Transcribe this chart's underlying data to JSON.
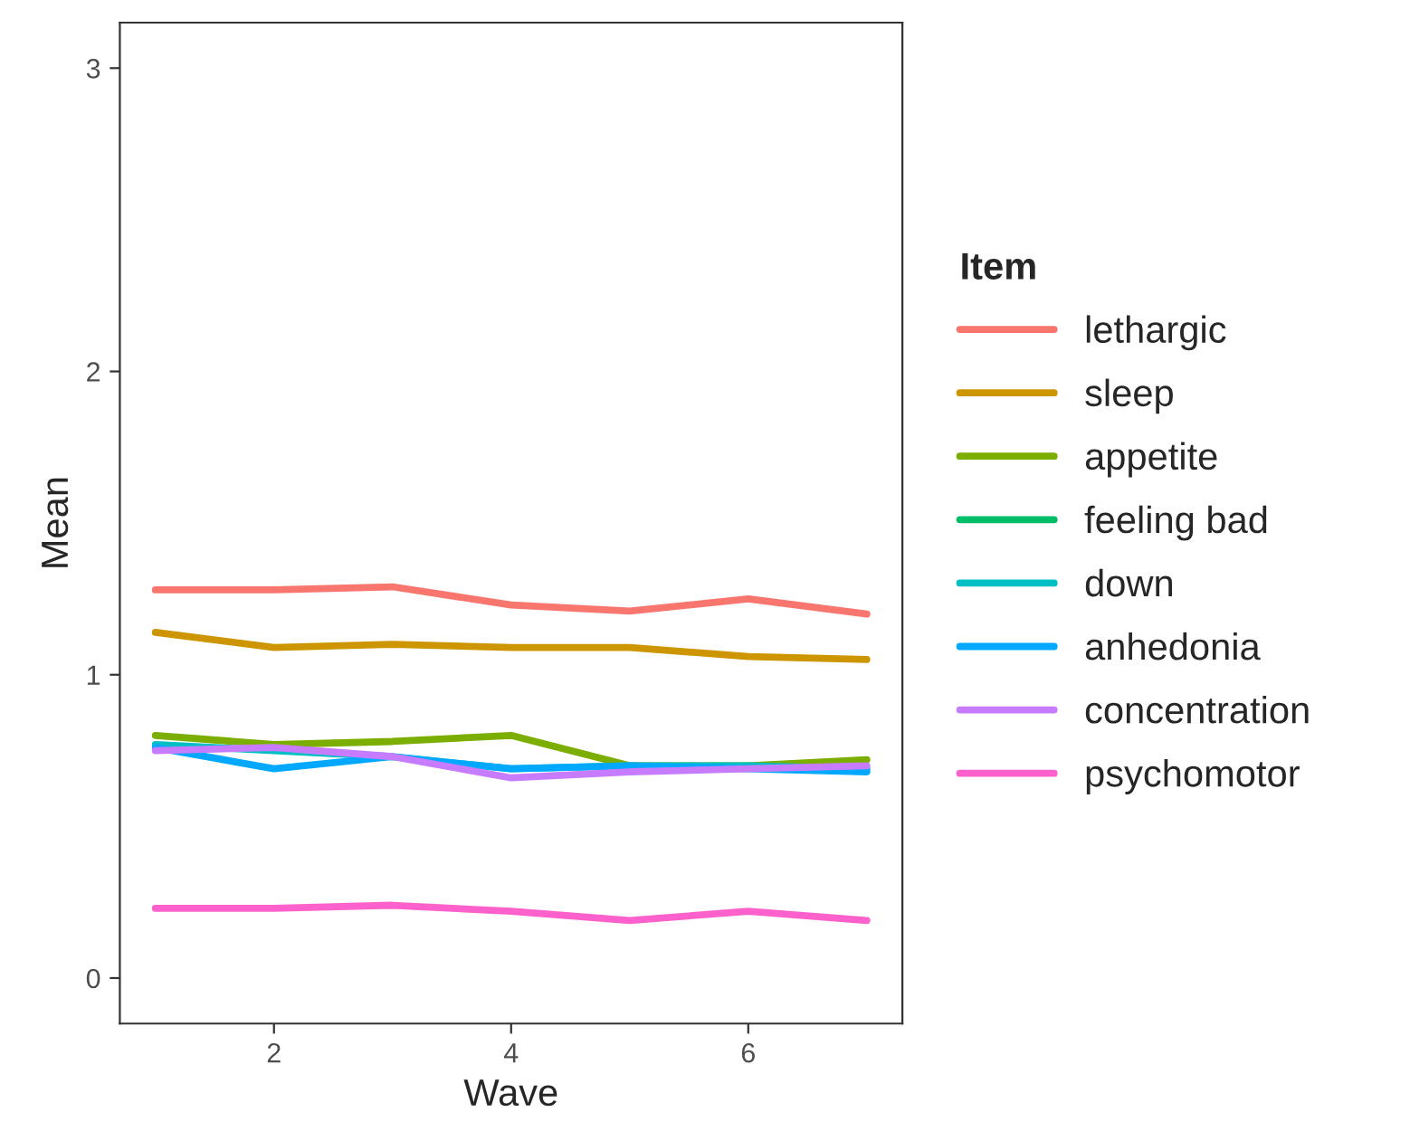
{
  "chart_data": {
    "type": "line",
    "xlabel": "Wave",
    "ylabel": "Mean",
    "legend_title": "Item",
    "x": [
      1,
      2,
      3,
      4,
      5,
      6,
      7
    ],
    "series": [
      {
        "name": "lethargic",
        "color": "#F8766D",
        "values": [
          1.28,
          1.28,
          1.29,
          1.23,
          1.21,
          1.25,
          1.2
        ]
      },
      {
        "name": "sleep",
        "color": "#CD9600",
        "values": [
          1.14,
          1.09,
          1.1,
          1.09,
          1.09,
          1.06,
          1.05
        ]
      },
      {
        "name": "appetite",
        "color": "#7CAE00",
        "values": [
          0.8,
          0.77,
          0.78,
          0.8,
          0.7,
          0.7,
          0.72
        ]
      },
      {
        "name": "feeling bad",
        "color": "#00BE67",
        "values": [
          null,
          null,
          null,
          null,
          null,
          null,
          null
        ]
      },
      {
        "name": "down",
        "color": "#00BFC4",
        "values": [
          0.77,
          0.75,
          0.73,
          0.69,
          0.7,
          0.7,
          0.69
        ]
      },
      {
        "name": "anhedonia",
        "color": "#00A9FF",
        "values": [
          0.76,
          0.69,
          0.73,
          0.69,
          0.7,
          0.69,
          0.68
        ]
      },
      {
        "name": "concentration",
        "color": "#C77CFF",
        "values": [
          0.75,
          0.76,
          0.73,
          0.66,
          0.68,
          0.69,
          0.7
        ]
      },
      {
        "name": "psychomotor",
        "color": "#FF61CC",
        "values": [
          0.23,
          0.23,
          0.24,
          0.22,
          0.19,
          0.22,
          0.19
        ]
      }
    ],
    "xlim": [
      0.7,
      7.3
    ],
    "ylim": [
      -0.15,
      3.15
    ],
    "xticks": [
      2,
      4,
      6
    ],
    "yticks": [
      0,
      1,
      2,
      3
    ],
    "grid": false,
    "legend": "right"
  }
}
